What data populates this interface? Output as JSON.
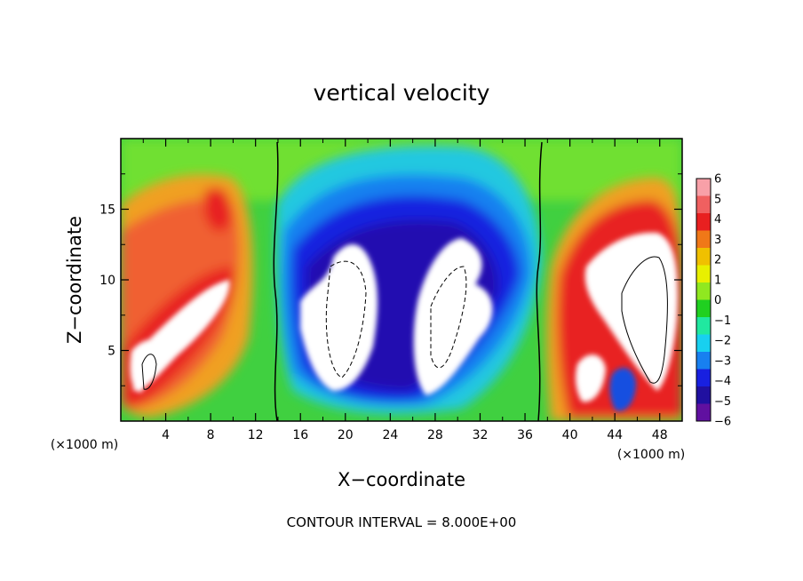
{
  "chart_data": {
    "type": "heatmap",
    "title": "vertical velocity",
    "xlabel": "X−coordinate",
    "ylabel": "Z−coordinate",
    "x_unit": "(×1000 m)",
    "y_unit": "(×1000 m)",
    "footer": "CONTOUR INTERVAL = 8.000E+00",
    "xlim": [
      0,
      50
    ],
    "ylim": [
      0,
      20
    ],
    "x_ticks": [
      "4",
      "8",
      "12",
      "16",
      "20",
      "24",
      "28",
      "32",
      "36",
      "40",
      "44",
      "48"
    ],
    "y_ticks": [
      "5",
      "10",
      "15"
    ],
    "colorbar": {
      "range": [
        -6,
        6
      ],
      "labels": [
        "6",
        "5",
        "4",
        "3",
        "2",
        "1",
        "0",
        "−1",
        "−2",
        "−3",
        "−4",
        "−5",
        "−6"
      ],
      "colors": [
        "#f8a0a8",
        "#f06060",
        "#e82020",
        "#f07818",
        "#f0c000",
        "#e8f000",
        "#90e820",
        "#20d020",
        "#20e8a0",
        "#18d0f0",
        "#1880f0",
        "#1820e0",
        "#2010a0",
        "#6010a0"
      ]
    },
    "features": [
      {
        "sign": "updraft",
        "x_range": [
          1,
          10
        ],
        "z_range": [
          2,
          17
        ],
        "peak": "above 6"
      },
      {
        "sign": "downdraft",
        "x_range": [
          15,
          35
        ],
        "z_range": [
          1,
          17
        ],
        "peak": "below -6"
      },
      {
        "sign": "updraft",
        "x_range": [
          40,
          50
        ],
        "z_range": [
          1,
          17
        ],
        "peak": "above 6"
      }
    ]
  }
}
